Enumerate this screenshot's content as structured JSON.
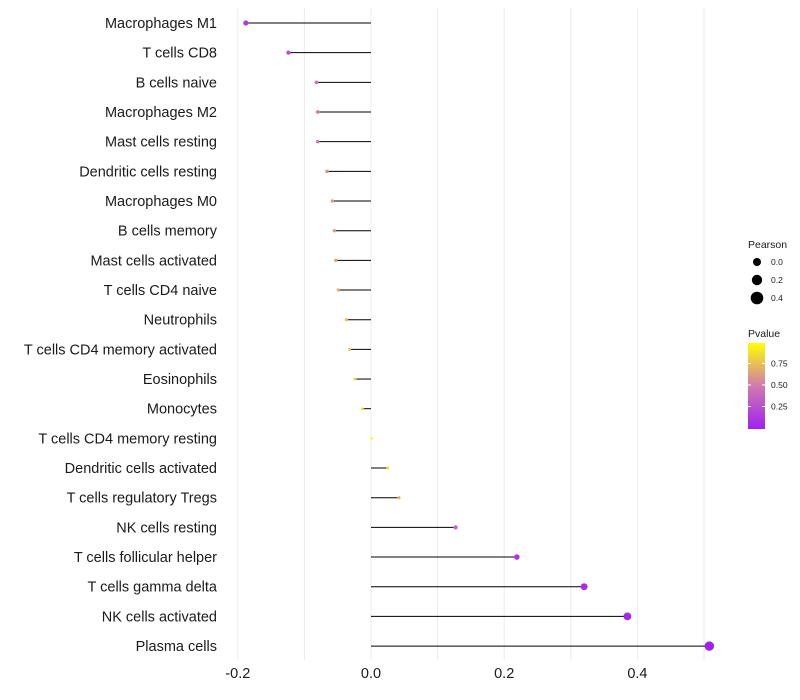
{
  "chart_data": {
    "type": "lollipop",
    "title": "",
    "xlabel": "",
    "ylabel": "",
    "xlim": [
      -0.2,
      0.5
    ],
    "x_ticks": [
      -0.2,
      0.0,
      0.2,
      0.4
    ],
    "x_tick_labels": [
      "-0.2",
      "0.0",
      "0.2",
      "0.4"
    ],
    "grid": true,
    "categories": [
      "Macrophages M1",
      "T cells CD8",
      "B cells naive",
      "Macrophages M2",
      "Mast cells resting",
      "Dendritic cells resting",
      "Macrophages M0",
      "B cells memory",
      "Mast cells activated",
      "T cells CD4 naive",
      "Neutrophils",
      "T cells CD4 memory activated",
      "Eosinophils",
      "Monocytes",
      "T cells CD4 memory resting",
      "Dendritic cells activated",
      "T cells regulatory  Tregs",
      "NK cells resting",
      "T cells follicular helper",
      "T cells gamma delta",
      "NK cells activated",
      "Plasma cells"
    ],
    "values": [
      -0.188,
      -0.124,
      -0.082,
      -0.08,
      -0.08,
      -0.066,
      -0.058,
      -0.055,
      -0.053,
      -0.049,
      -0.037,
      -0.032,
      -0.024,
      -0.013,
      0.001,
      0.025,
      0.042,
      0.127,
      0.219,
      0.32,
      0.385,
      0.508
    ],
    "pvalues": [
      0.15,
      0.28,
      0.5,
      0.52,
      0.52,
      0.58,
      0.62,
      0.64,
      0.66,
      0.68,
      0.74,
      0.78,
      0.84,
      0.88,
      0.99,
      0.86,
      0.72,
      0.4,
      0.12,
      0.07,
      0.04,
      0.005
    ],
    "legend": {
      "position": "right",
      "size_title": "Pearson",
      "size_labels": [
        "0.0",
        "0.2",
        "0.4"
      ],
      "size_values": [
        0.0,
        0.2,
        0.4
      ],
      "color_title": "Pvalue",
      "color_labels": [
        "0.75",
        "0.50",
        "0.25"
      ],
      "color_values": [
        0.75,
        0.5,
        0.25
      ],
      "color_range": [
        0.0,
        1.0
      ],
      "color_low": "#a020f0",
      "color_high": "#ffff00"
    }
  }
}
